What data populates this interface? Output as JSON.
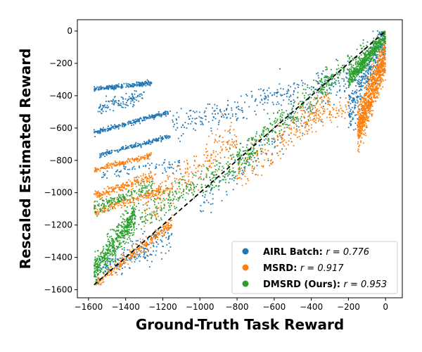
{
  "chart_data": {
    "type": "scatter",
    "title": "",
    "xlabel": "Ground-Truth Task Reward",
    "ylabel": "Rescaled Estimated Reward",
    "xlim": [
      -1660,
      90
    ],
    "ylim": [
      -1650,
      70
    ],
    "xticks": [
      -1600,
      -1400,
      -1200,
      -1000,
      -800,
      -600,
      -400,
      -200,
      0
    ],
    "yticks": [
      -1600,
      -1400,
      -1200,
      -1000,
      -800,
      -600,
      -400,
      -200,
      0
    ],
    "grid": false,
    "legend_position": "bottom-right",
    "reference_line": {
      "style": "dashed",
      "color": "#000000",
      "from": [
        -1570,
        -1570
      ],
      "to": [
        0,
        0
      ]
    },
    "series": [
      {
        "name": "AIRL Batch:",
        "r_label": "r = 0.776",
        "color": "#1f77b4",
        "clusters": [
          {
            "x_range": [
              -1570,
              -1260
            ],
            "y_start": -360,
            "y_end": -320,
            "spread": 14,
            "n": 220
          },
          {
            "x_range": [
              -1570,
              -1160
            ],
            "y_start": -630,
            "y_end": -500,
            "spread": 14,
            "n": 240
          },
          {
            "x_range": [
              -1540,
              -1160
            ],
            "y_start": -770,
            "y_end": -650,
            "spread": 14,
            "n": 200
          },
          {
            "x_range": [
              -1550,
              -1300
            ],
            "y_start": -480,
            "y_end": -400,
            "spread": 40,
            "n": 120
          },
          {
            "x_range": [
              -1560,
              -1100
            ],
            "y_start": -880,
            "y_end": -830,
            "spread": 50,
            "n": 80
          },
          {
            "x_range": [
              -1560,
              -1150
            ],
            "y_start": -1500,
            "y_end": -1260,
            "spread": 90,
            "n": 200
          },
          {
            "x_range": [
              -1150,
              -200
            ],
            "y_start": -600,
            "y_end": -260,
            "spread": 90,
            "n": 280
          },
          {
            "x_range": [
              -1000,
              -200
            ],
            "y_start": -1050,
            "y_end": -300,
            "spread": 120,
            "n": 180
          },
          {
            "x_range": [
              -200,
              0
            ],
            "y_start": -500,
            "y_end": -20,
            "spread": 150,
            "n": 380
          }
        ]
      },
      {
        "name": "MSRD:",
        "r_label": "r = 0.917",
        "color": "#ff7f0e",
        "clusters": [
          {
            "x_range": [
              -1570,
              -1260
            ],
            "y_start": -860,
            "y_end": -770,
            "spread": 16,
            "n": 170
          },
          {
            "x_range": [
              -1570,
              -1250
            ],
            "y_start": -1020,
            "y_end": -900,
            "spread": 30,
            "n": 200
          },
          {
            "x_range": [
              -1570,
              -1200
            ],
            "y_start": -1120,
            "y_end": -980,
            "spread": 30,
            "n": 180
          },
          {
            "x_range": [
              -1560,
              -1150
            ],
            "y_start": -1560,
            "y_end": -1180,
            "spread": 40,
            "n": 260
          },
          {
            "x_range": [
              -1300,
              -800
            ],
            "y_start": -1100,
            "y_end": -650,
            "spread": 110,
            "n": 240
          },
          {
            "x_range": [
              -800,
              -300
            ],
            "y_start": -900,
            "y_end": -400,
            "spread": 110,
            "n": 220
          },
          {
            "x_range": [
              -450,
              -200
            ],
            "y_start": -600,
            "y_end": -450,
            "spread": 70,
            "n": 90
          },
          {
            "x_range": [
              -150,
              0
            ],
            "y_start": -600,
            "y_end": -150,
            "spread": 130,
            "n": 900
          }
        ]
      },
      {
        "name": "DMSRD (Ours):",
        "r_label": "r = 0.953",
        "color": "#2ca02c",
        "clusters": [
          {
            "x_range": [
              -1570,
              -1350
            ],
            "y_start": -1480,
            "y_end": -1150,
            "spread": 90,
            "n": 500
          },
          {
            "x_range": [
              -1570,
              -1250
            ],
            "y_start": -1100,
            "y_end": -950,
            "spread": 40,
            "n": 160
          },
          {
            "x_range": [
              -1400,
              -700
            ],
            "y_start": -1200,
            "y_end": -750,
            "spread": 90,
            "n": 320
          },
          {
            "x_range": [
              -800,
              -300
            ],
            "y_start": -800,
            "y_end": -300,
            "spread": 90,
            "n": 260
          },
          {
            "x_range": [
              -350,
              -100
            ],
            "y_start": -350,
            "y_end": -120,
            "spread": 60,
            "n": 110
          },
          {
            "x_range": [
              -200,
              0
            ],
            "y_start": -300,
            "y_end": -30,
            "spread": 50,
            "n": 520
          }
        ]
      }
    ]
  }
}
